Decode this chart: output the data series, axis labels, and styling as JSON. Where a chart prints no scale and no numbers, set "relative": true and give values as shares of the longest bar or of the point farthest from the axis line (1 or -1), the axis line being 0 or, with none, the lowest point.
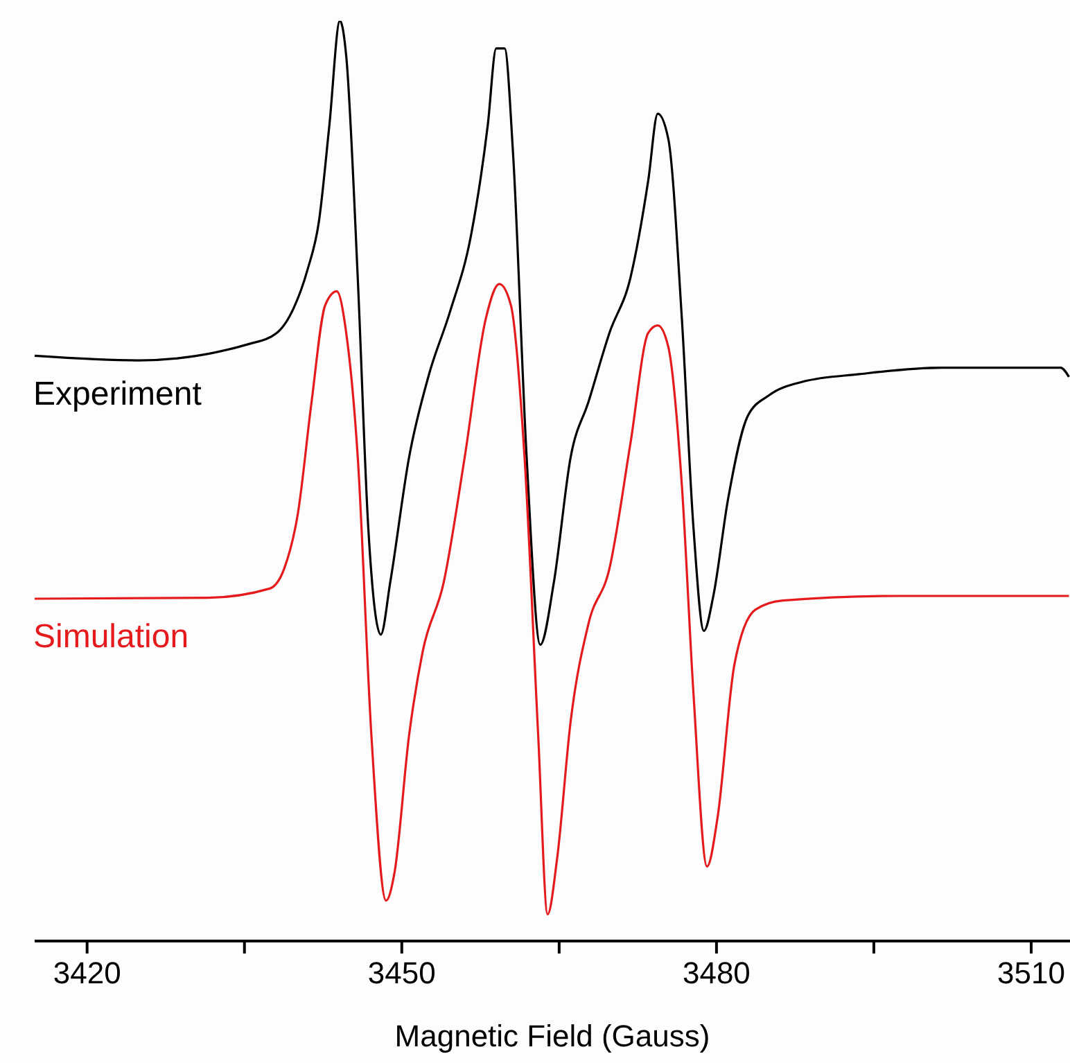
{
  "chart_data": {
    "type": "line",
    "xlabel": "Magnetic Field (Gauss)",
    "relative": true,
    "xlim": [
      3415,
      3513.7
    ],
    "xticks": [
      3420,
      {
        "value": 3435,
        "label": null
      },
      3450,
      {
        "value": 3465,
        "label": null
      },
      3480,
      {
        "value": 3495,
        "label": null
      },
      3510
    ],
    "marker": "none",
    "tick_labels": "x",
    "series": [
      {
        "name": "Experiment",
        "color": "#000000",
        "x": [
          3415.0,
          3424.9,
          3435.5,
          3438.1,
          3439.7,
          3441.0,
          3442.1,
          3443.1,
          3444.1,
          3444.7,
          3445.8,
          3446.8,
          3448.0,
          3448.9,
          3450.7,
          3452.6,
          3454.6,
          3456.6,
          3458.2,
          3459.0,
          3459.8,
          3460.6,
          3461.9,
          3463.2,
          3464.5,
          3466.1,
          3467.8,
          3469.8,
          3471.8,
          3473.5,
          3474.4,
          3475.4,
          3476.7,
          3477.8,
          3478.8,
          3479.7,
          3481.1,
          3483.0,
          3485.0,
          3488.3,
          3493.6,
          3501.5,
          3509.5,
          3512.8,
          3513.6
        ],
        "values": [
          0.636,
          0.631,
          0.649,
          0.661,
          0.688,
          0.729,
          0.782,
          0.887,
          1.0,
          0.962,
          0.721,
          0.45,
          0.333,
          0.39,
          0.526,
          0.616,
          0.684,
          0.767,
          0.887,
          0.97,
          0.97,
          0.857,
          0.526,
          0.322,
          0.39,
          0.526,
          0.586,
          0.661,
          0.721,
          0.827,
          0.899,
          0.872,
          0.676,
          0.45,
          0.337,
          0.375,
          0.48,
          0.571,
          0.593,
          0.608,
          0.616,
          0.623,
          0.623,
          0.623,
          0.613
        ]
      },
      {
        "name": "Simulation",
        "color": "#e41a1c",
        "x": [
          3415,
          3431.5,
          3437.4,
          3438.8,
          3440.1,
          3441.4,
          3442.7,
          3443.8,
          3444.7,
          3445.8,
          3447.1,
          3448.5,
          3449.3,
          3450.7,
          3452.0,
          3454.0,
          3456.0,
          3458.0,
          3459.3,
          3460.4,
          3461.7,
          3463.0,
          3463.9,
          3464.8,
          3466.1,
          3467.8,
          3469.8,
          3471.8,
          3473.5,
          3474.4,
          3475.4,
          3476.7,
          3477.8,
          3479.1,
          3480.1,
          3481.7,
          3483.7,
          3486.3,
          3497.6,
          3513.6
        ],
        "values": [
          0.372,
          0.373,
          0.383,
          0.405,
          0.465,
          0.586,
          0.691,
          0.706,
          0.661,
          0.526,
          0.224,
          0.044,
          0.074,
          0.224,
          0.315,
          0.39,
          0.526,
          0.676,
          0.714,
          0.691,
          0.526,
          0.224,
          0.029,
          0.089,
          0.239,
          0.345,
          0.405,
          0.541,
          0.661,
          0.669,
          0.646,
          0.495,
          0.27,
          0.081,
          0.134,
          0.3,
          0.36,
          0.37,
          0.375,
          0.375
        ]
      }
    ]
  }
}
